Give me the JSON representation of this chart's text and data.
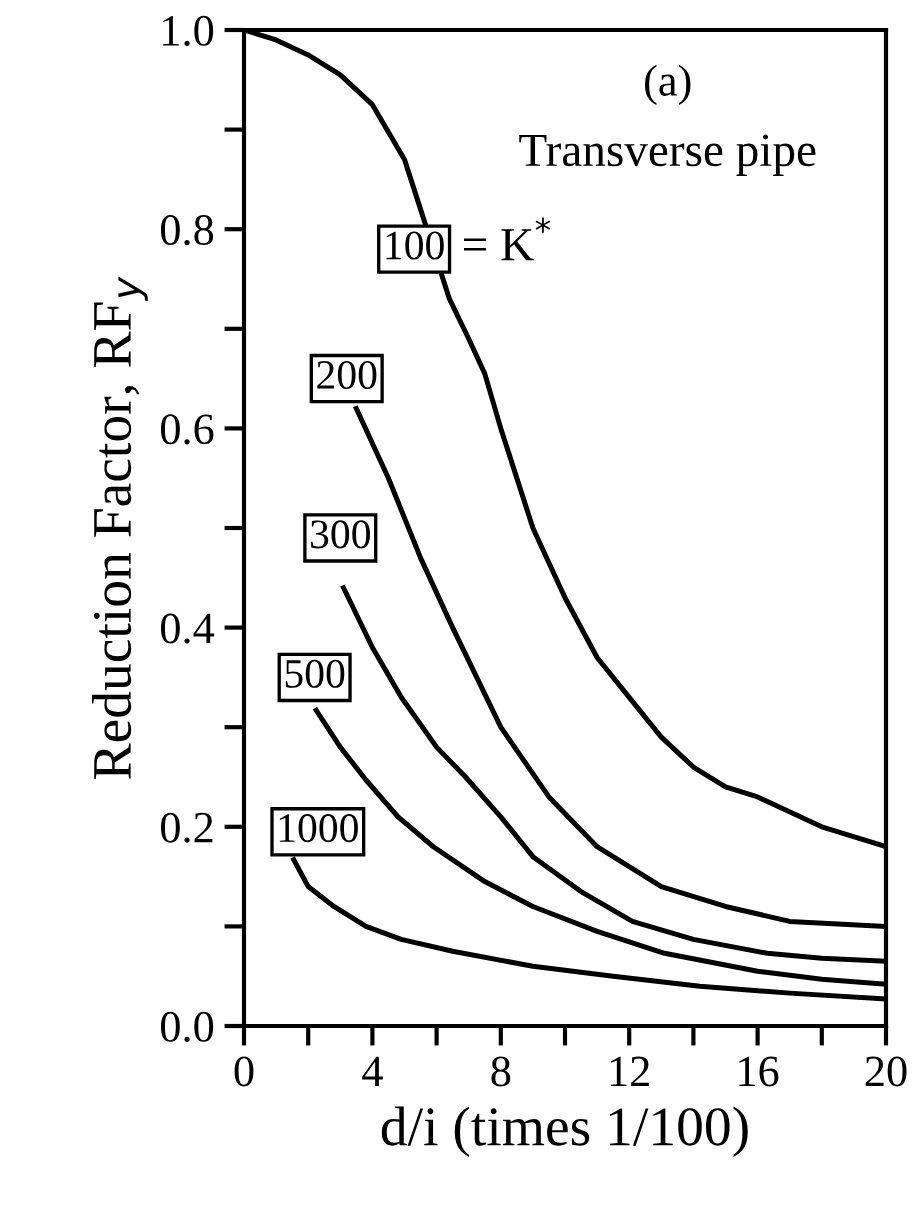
{
  "chart_data": {
    "type": "line",
    "xlabel": "d/i (times 1/100)",
    "ylabel": "Reduction Factor, RF$_{y}$",
    "annotations": [
      "(a)",
      "Transverse pipe",
      "= K$^{*}$"
    ],
    "series": [
      {
        "name": "100",
        "color": "#000000",
        "x": [
          0,
          1,
          2,
          3,
          4,
          5,
          5.3,
          6.4,
          7,
          7.5,
          8,
          9,
          10,
          11,
          12,
          13,
          14,
          15,
          16,
          18,
          20
        ],
        "values": [
          1.0,
          0.99,
          0.975,
          0.955,
          0.925,
          0.87,
          0.84,
          0.73,
          0.69,
          0.655,
          0.6,
          0.5,
          0.43,
          0.37,
          0.33,
          0.29,
          0.26,
          0.24,
          0.23,
          0.2,
          0.18
        ]
      },
      {
        "name": "200",
        "color": "#000000",
        "x": [
          3.5,
          4.5,
          5.5,
          6.5,
          8,
          9.5,
          11,
          13,
          15,
          17,
          20
        ],
        "values": [
          0.62,
          0.55,
          0.47,
          0.4,
          0.3,
          0.23,
          0.18,
          0.14,
          0.12,
          0.105,
          0.1
        ]
      },
      {
        "name": "300",
        "color": "#000000",
        "x": [
          3.1,
          4,
          4.9,
          6,
          6.9,
          8,
          9,
          10.5,
          12.1,
          14,
          16.3,
          18,
          20
        ],
        "values": [
          0.44,
          0.38,
          0.33,
          0.28,
          0.25,
          0.21,
          0.17,
          0.135,
          0.105,
          0.087,
          0.073,
          0.068,
          0.065
        ]
      },
      {
        "name": "500",
        "color": "#000000",
        "x": [
          2.25,
          3,
          3.8,
          4.8,
          5.9,
          7.5,
          9,
          11,
          13.1,
          16,
          18,
          20
        ],
        "values": [
          0.317,
          0.28,
          0.247,
          0.21,
          0.18,
          0.145,
          0.12,
          0.095,
          0.073,
          0.055,
          0.047,
          0.042
        ]
      },
      {
        "name": "1000",
        "color": "#000000",
        "x": [
          1.55,
          2,
          2.8,
          3.8,
          4.9,
          6.5,
          9,
          11.5,
          14.2,
          17,
          20
        ],
        "values": [
          0.167,
          0.14,
          0.12,
          0.1,
          0.087,
          0.075,
          0.06,
          0.05,
          0.04,
          0.033,
          0.027
        ]
      }
    ],
    "xlim": [
      0,
      20
    ],
    "ylim": [
      0,
      1.0
    ],
    "xticks": [
      0,
      {
        "value": 2,
        "label": null
      },
      4,
      {
        "value": 6,
        "label": null
      },
      8,
      {
        "value": 10,
        "label": null
      },
      12,
      {
        "value": 14,
        "label": null
      },
      16,
      {
        "value": 18,
        "label": null
      },
      20
    ],
    "yticks": [
      {
        "value": 0,
        "label": "0.0"
      },
      {
        "value": 0.1,
        "label": null
      },
      {
        "value": 0.2,
        "label": "0.2"
      },
      {
        "value": 0.3,
        "label": null
      },
      {
        "value": 0.4,
        "label": "0.4"
      },
      {
        "value": 0.5,
        "label": null
      },
      {
        "value": 0.6,
        "label": "0.6"
      },
      {
        "value": 0.7,
        "label": null
      },
      {
        "value": 0.8,
        "label": "0.8"
      },
      {
        "value": 0.9,
        "label": null
      },
      {
        "value": 1.0,
        "label": "1.0"
      }
    ],
    "grid": false,
    "legend": false,
    "marker": "none",
    "line_style": "solid"
  }
}
